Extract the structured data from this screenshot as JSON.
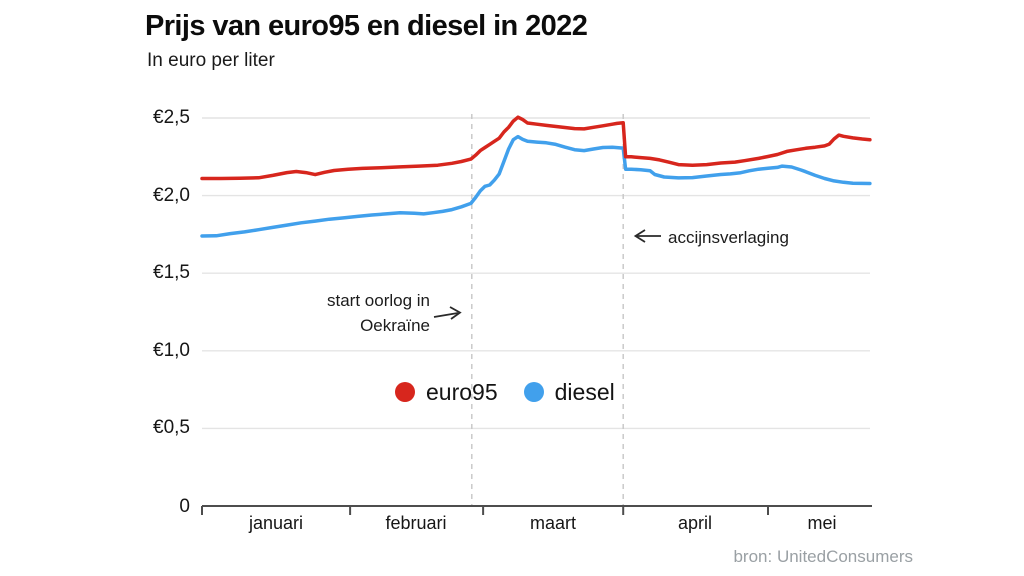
{
  "header": {
    "title": "Prijs van euro95 en diesel in 2022",
    "subtitle": "In euro per liter"
  },
  "source": "bron: UnitedConsumers",
  "annotations": {
    "war_line1": "start oorlog in",
    "war_line2": "Oekraïne",
    "excise": "accijnsverlaging"
  },
  "chart_data": {
    "type": "line",
    "title": "Prijs van euro95 en diesel in 2022",
    "ylabel": "In euro per liter",
    "ylim": [
      0,
      2.5
    ],
    "grid": "horizontal",
    "ytick_labels": [
      "€2,5",
      "€2,0",
      "€1,5",
      "€1,0",
      "€0,5",
      "0"
    ],
    "ytick_values": [
      2.5,
      2.0,
      1.5,
      1.0,
      0.5,
      0
    ],
    "x_unit": "days since 1 january 2022",
    "xlim": [
      0,
      141.6
    ],
    "month_ticks": [
      {
        "label": "januari",
        "day": 0
      },
      {
        "label": "februari",
        "day": 31.4
      },
      {
        "label": "maart",
        "day": 59.6
      },
      {
        "label": "april",
        "day": 89.3
      },
      {
        "label": "mei",
        "day": 120
      }
    ],
    "events": [
      {
        "label": "start oorlog in Oekraïne",
        "day": 57.2
      },
      {
        "label": "accijnsverlaging",
        "day": 89.3
      }
    ],
    "series": [
      {
        "name": "euro95",
        "color": "#d7261d",
        "points": [
          [
            0,
            2.11
          ],
          [
            4,
            2.11
          ],
          [
            8,
            2.112
          ],
          [
            12,
            2.115
          ],
          [
            15,
            2.13
          ],
          [
            18,
            2.148
          ],
          [
            20,
            2.155
          ],
          [
            22,
            2.148
          ],
          [
            24,
            2.135
          ],
          [
            26,
            2.15
          ],
          [
            28,
            2.162
          ],
          [
            31,
            2.17
          ],
          [
            34,
            2.175
          ],
          [
            38,
            2.18
          ],
          [
            42,
            2.185
          ],
          [
            46,
            2.19
          ],
          [
            50,
            2.196
          ],
          [
            53,
            2.208
          ],
          [
            55,
            2.22
          ],
          [
            57,
            2.235
          ],
          [
            58,
            2.26
          ],
          [
            59,
            2.29
          ],
          [
            60,
            2.31
          ],
          [
            61,
            2.33
          ],
          [
            62,
            2.35
          ],
          [
            63,
            2.37
          ],
          [
            64,
            2.41
          ],
          [
            65,
            2.44
          ],
          [
            66,
            2.48
          ],
          [
            67,
            2.505
          ],
          [
            68,
            2.49
          ],
          [
            69,
            2.468
          ],
          [
            71,
            2.46
          ],
          [
            73,
            2.452
          ],
          [
            76,
            2.442
          ],
          [
            79,
            2.432
          ],
          [
            81,
            2.43
          ],
          [
            83,
            2.44
          ],
          [
            85,
            2.45
          ],
          [
            87,
            2.46
          ],
          [
            88,
            2.465
          ],
          [
            89.3,
            2.47
          ],
          [
            89.8,
            2.25
          ],
          [
            91,
            2.25
          ],
          [
            93,
            2.245
          ],
          [
            95,
            2.24
          ],
          [
            97,
            2.23
          ],
          [
            99,
            2.215
          ],
          [
            101,
            2.2
          ],
          [
            104,
            2.195
          ],
          [
            107,
            2.2
          ],
          [
            110,
            2.21
          ],
          [
            113,
            2.216
          ],
          [
            115,
            2.225
          ],
          [
            118,
            2.24
          ],
          [
            120,
            2.252
          ],
          [
            122,
            2.265
          ],
          [
            124,
            2.285
          ],
          [
            126,
            2.295
          ],
          [
            128,
            2.305
          ],
          [
            130,
            2.312
          ],
          [
            132,
            2.32
          ],
          [
            133,
            2.332
          ],
          [
            134,
            2.365
          ],
          [
            135,
            2.39
          ],
          [
            136,
            2.382
          ],
          [
            138,
            2.372
          ],
          [
            140,
            2.365
          ],
          [
            141.6,
            2.36
          ]
        ]
      },
      {
        "name": "diesel",
        "color": "#41a0ec",
        "points": [
          [
            0,
            1.74
          ],
          [
            3,
            1.741
          ],
          [
            6,
            1.755
          ],
          [
            9,
            1.766
          ],
          [
            12,
            1.78
          ],
          [
            15,
            1.795
          ],
          [
            18,
            1.81
          ],
          [
            21,
            1.825
          ],
          [
            24,
            1.836
          ],
          [
            27,
            1.848
          ],
          [
            30,
            1.856
          ],
          [
            33,
            1.866
          ],
          [
            36,
            1.875
          ],
          [
            39,
            1.882
          ],
          [
            42,
            1.89
          ],
          [
            45,
            1.886
          ],
          [
            47,
            1.882
          ],
          [
            49,
            1.89
          ],
          [
            51,
            1.898
          ],
          [
            53,
            1.91
          ],
          [
            55,
            1.928
          ],
          [
            57,
            1.95
          ],
          [
            58,
            1.988
          ],
          [
            59,
            2.03
          ],
          [
            60,
            2.06
          ],
          [
            61,
            2.068
          ],
          [
            62,
            2.1
          ],
          [
            63,
            2.14
          ],
          [
            64,
            2.22
          ],
          [
            65,
            2.3
          ],
          [
            66,
            2.36
          ],
          [
            67,
            2.38
          ],
          [
            68,
            2.362
          ],
          [
            69,
            2.35
          ],
          [
            71,
            2.345
          ],
          [
            73,
            2.34
          ],
          [
            75,
            2.33
          ],
          [
            77,
            2.312
          ],
          [
            79,
            2.296
          ],
          [
            81,
            2.29
          ],
          [
            83,
            2.3
          ],
          [
            85,
            2.31
          ],
          [
            87,
            2.312
          ],
          [
            89.3,
            2.306
          ],
          [
            89.8,
            2.17
          ],
          [
            91,
            2.17
          ],
          [
            93,
            2.166
          ],
          [
            95,
            2.16
          ],
          [
            96,
            2.136
          ],
          [
            98,
            2.12
          ],
          [
            101,
            2.114
          ],
          [
            104,
            2.116
          ],
          [
            107,
            2.126
          ],
          [
            110,
            2.136
          ],
          [
            112,
            2.14
          ],
          [
            114,
            2.146
          ],
          [
            116,
            2.16
          ],
          [
            118,
            2.17
          ],
          [
            120,
            2.176
          ],
          [
            122,
            2.182
          ],
          [
            123,
            2.19
          ],
          [
            125,
            2.184
          ],
          [
            127,
            2.165
          ],
          [
            128,
            2.154
          ],
          [
            130,
            2.13
          ],
          [
            132,
            2.11
          ],
          [
            134,
            2.095
          ],
          [
            136,
            2.086
          ],
          [
            138,
            2.08
          ],
          [
            141.6,
            2.078
          ]
        ]
      }
    ],
    "colors": {
      "euro95": "#d7261d",
      "diesel": "#41a0ec",
      "gridline": "#e4e4e4",
      "event_line": "#c9c9c9",
      "axis": "#4d4d4d",
      "source_text": "#9aa0a4"
    }
  }
}
